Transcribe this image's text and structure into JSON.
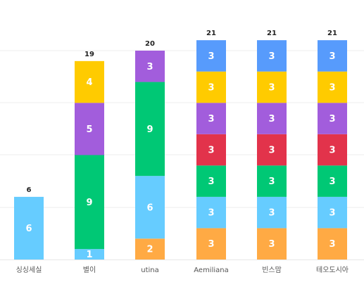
{
  "chart_data": {
    "type": "bar",
    "stacked": true,
    "categories": [
      "싱싱세실",
      "별이",
      "utina",
      "Aemiliana",
      "빈스맘",
      "테오도시아"
    ],
    "totals": [
      6,
      19,
      20,
      21,
      21,
      21
    ],
    "series": [
      {
        "color": "#ffaa44",
        "values": [
          0,
          0,
          2,
          3,
          3,
          3
        ]
      },
      {
        "color": "#66ccff",
        "values": [
          6,
          1,
          6,
          3,
          3,
          3
        ]
      },
      {
        "color": "#00c875",
        "values": [
          0,
          9,
          9,
          3,
          3,
          3
        ]
      },
      {
        "color": "#e2334b",
        "values": [
          0,
          0,
          0,
          3,
          3,
          3
        ]
      },
      {
        "color": "#a25ddc",
        "values": [
          0,
          5,
          3,
          3,
          3,
          3
        ]
      },
      {
        "color": "#ffcb00",
        "values": [
          0,
          4,
          0,
          3,
          3,
          3
        ]
      },
      {
        "color": "#579bfc",
        "values": [
          0,
          0,
          0,
          3,
          3,
          3
        ]
      }
    ],
    "ylim": [
      0,
      21
    ],
    "grid": true,
    "legend": "none"
  }
}
